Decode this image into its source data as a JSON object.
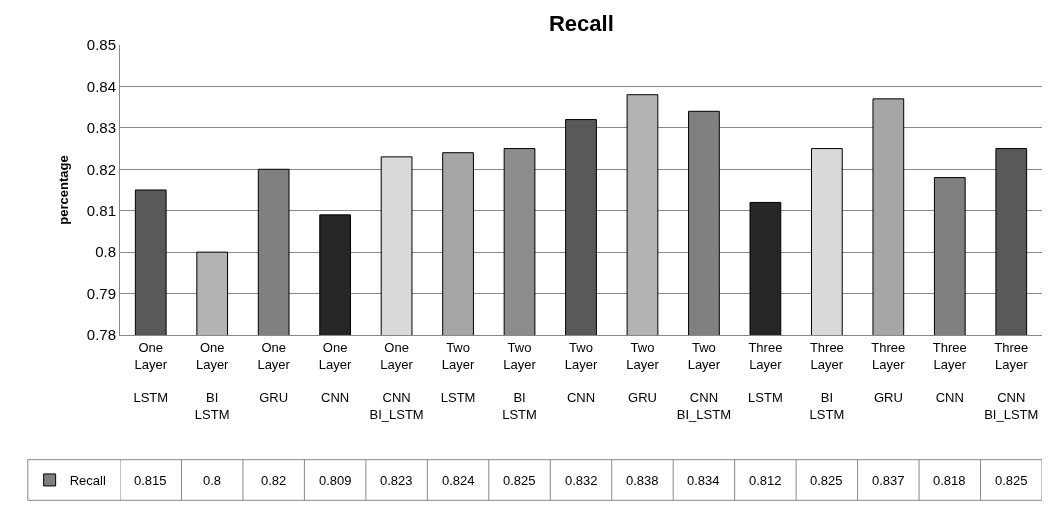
{
  "chart_data": {
    "type": "bar",
    "title": "Recall",
    "ylabel": "percentage",
    "categories": [
      "One Layer LSTM",
      "One Layer BI LSTM",
      "One Layer GRU",
      "One Layer CNN",
      "One Layer CNN BI_LSTM",
      "Two Layer LSTM",
      "Two Layer BI LSTM",
      "Two Layer CNN",
      "Two Layer GRU",
      "Two Layer CNN BI_LSTM",
      "Three Layer LSTM",
      "Three Layer BI LSTM",
      "Three Layer GRU",
      "Three Layer CNN",
      "Three Layer CNN BI_LSTM"
    ],
    "series": [
      {
        "name": "Recall",
        "color": "#808080",
        "colors": [
          "#595959",
          "#b3b3b3",
          "#808080",
          "#262626",
          "#d9d9d9",
          "#a6a6a6",
          "#8c8c8c",
          "#595959",
          "#b3b3b3",
          "#808080",
          "#262626",
          "#d9d9d9",
          "#a6a6a6",
          "#808080",
          "#595959"
        ],
        "values": [
          0.815,
          0.8,
          0.82,
          0.809,
          0.823,
          0.824,
          0.825,
          0.832,
          0.838,
          0.834,
          0.812,
          0.825,
          0.837,
          0.818,
          0.825
        ]
      }
    ],
    "ylim": [
      0.78,
      0.85
    ],
    "yticks": [
      0.78,
      0.79,
      0.8,
      0.81,
      0.82,
      0.83,
      0.84,
      0.85
    ],
    "grid": "y",
    "legend": "bottom left",
    "data_labels": true
  }
}
